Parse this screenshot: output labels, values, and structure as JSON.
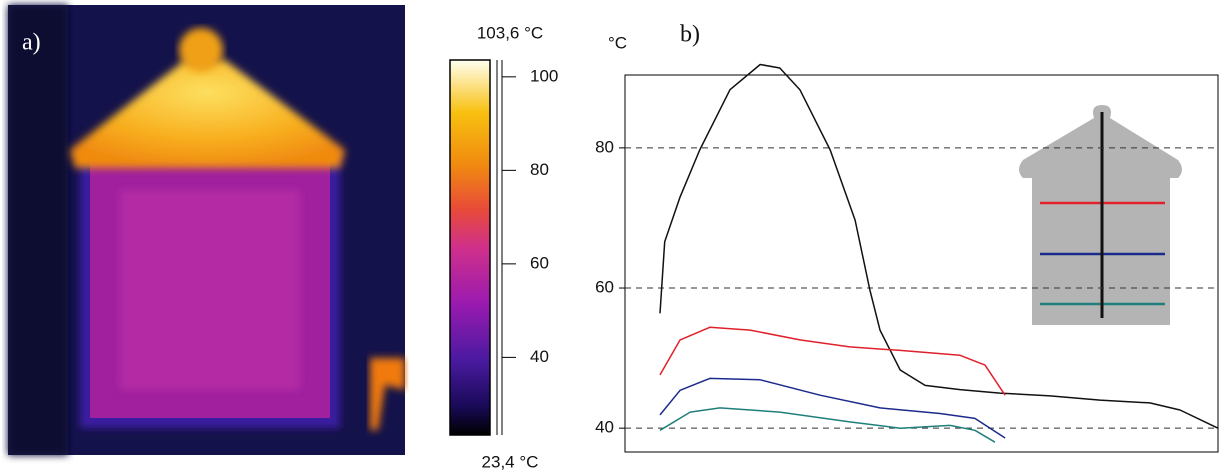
{
  "chart_data": [
    {
      "type": "colorbar",
      "panel_label": "a)",
      "clim": [
        {
          "value": 23.4,
          "label": "23,4 °C"
        },
        {
          "value": 103.6,
          "label": "103,6 °C"
        }
      ],
      "ticks": [
        40,
        60,
        80,
        100
      ]
    },
    {
      "type": "line",
      "panel_label": "b)",
      "ylabel": "°C",
      "xlim": [
        0,
        100
      ],
      "ylim": [
        36.6,
        90.4
      ],
      "yticks": [
        40,
        60,
        80
      ],
      "grid": true,
      "series": [
        {
          "color": "#111111",
          "x": [
            5.9,
            6.7,
            9.3,
            12.6,
            17.7,
            22.8,
            26.1,
            29.5,
            34.6,
            38.8,
            41.3,
            43,
            46.4,
            50.6,
            56.5,
            63.2,
            71.7,
            80.1,
            88.5,
            93.6,
            100
          ],
          "values": [
            56.4,
            66.6,
            73,
            79.7,
            88.3,
            91.9,
            91.4,
            88.3,
            79.7,
            69.7,
            59.7,
            54,
            48.3,
            46.1,
            45.5,
            45,
            44.6,
            44,
            43.6,
            42.6,
            40
          ]
        },
        {
          "color": "#e0202a",
          "x": [
            5.9,
            9.3,
            14.3,
            21.1,
            29.5,
            37.9,
            46.4,
            56.5,
            60.7,
            64.1
          ],
          "values": [
            47.6,
            52.6,
            54.4,
            54,
            52.6,
            51.6,
            51.1,
            50.4,
            49,
            44.7
          ]
        },
        {
          "color": "#1c2a8c",
          "x": [
            5.9,
            9.3,
            14.3,
            22.8,
            32.9,
            43,
            53.1,
            59,
            64.1
          ],
          "values": [
            41.9,
            45.4,
            47.1,
            46.9,
            44.7,
            42.9,
            42.1,
            41.4,
            38.6
          ]
        },
        {
          "color": "#1f7f7a",
          "x": [
            5.9,
            11,
            16,
            26.1,
            37.9,
            46.4,
            54.8,
            59,
            62.4
          ],
          "values": [
            39.7,
            42.3,
            42.9,
            42.3,
            40.9,
            40,
            40.4,
            39.7,
            38
          ]
        }
      ]
    }
  ]
}
